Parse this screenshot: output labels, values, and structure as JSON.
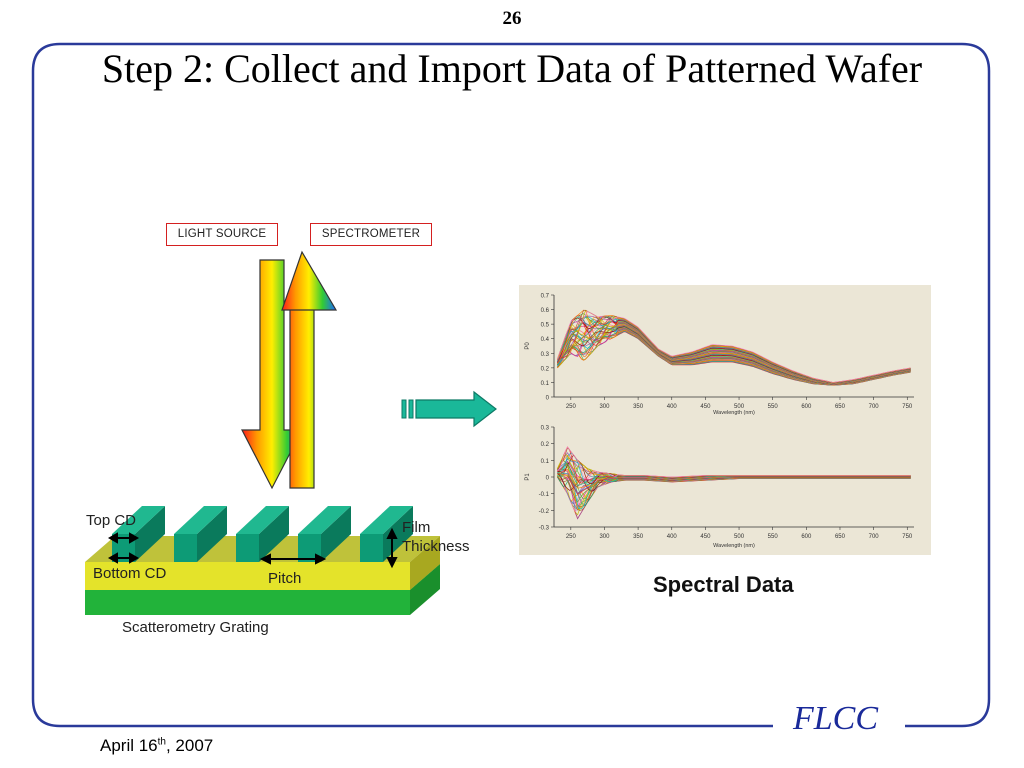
{
  "slide": {
    "number": "26",
    "title": "Step 2: Collect and Import Data of Patterned Wafer",
    "footer_date_month_day": "April 16",
    "footer_date_sup": "th",
    "footer_date_year": ", 2007",
    "logo": "FLCC"
  },
  "diagram": {
    "light_source_label": "LIGHT SOURCE",
    "spectrometer_label": "SPECTROMETER",
    "top_cd_label": "Top CD",
    "bottom_cd_label": "Bottom CD",
    "pitch_label": "Pitch",
    "film_label": "Film",
    "thickness_label": "Thickness",
    "grating_caption": "Scatterometry Grating",
    "spectral_caption": "Spectral Data"
  },
  "colors": {
    "frame": "#2a3a9a",
    "substrate_green": "#22b33a",
    "film_yellow": "#d7d62a",
    "line_teal": "#0e8a6a",
    "label_border": "#d42020",
    "chart_bg": "#ebe6d6"
  },
  "chart_data": [
    {
      "type": "line",
      "xlabel": "Wavelength (nm)",
      "ylabel": "P0",
      "xticks": [
        250,
        300,
        350,
        400,
        450,
        500,
        550,
        600,
        650,
        700,
        750
      ],
      "yticks": [
        "0.7",
        "0.6",
        "0.5",
        "0.4",
        "0.3",
        "0.2",
        "0.1",
        "0"
      ],
      "xlim": [
        225,
        760
      ],
      "ylim": [
        0,
        0.7
      ],
      "grid": false,
      "series_count": 40,
      "envelope": {
        "x": [
          230,
          250,
          270,
          290,
          310,
          330,
          350,
          380,
          400,
          430,
          460,
          490,
          520,
          550,
          580,
          610,
          640,
          670,
          700,
          730,
          755
        ],
        "low": [
          0.2,
          0.3,
          0.25,
          0.35,
          0.4,
          0.45,
          0.4,
          0.28,
          0.22,
          0.22,
          0.24,
          0.24,
          0.21,
          0.16,
          0.12,
          0.09,
          0.08,
          0.09,
          0.12,
          0.15,
          0.17
        ],
        "high": [
          0.26,
          0.52,
          0.6,
          0.55,
          0.56,
          0.54,
          0.48,
          0.33,
          0.28,
          0.31,
          0.36,
          0.35,
          0.31,
          0.24,
          0.18,
          0.13,
          0.1,
          0.12,
          0.15,
          0.18,
          0.2
        ]
      }
    },
    {
      "type": "line",
      "xlabel": "Wavelength (nm)",
      "ylabel": "P1",
      "xticks": [
        250,
        300,
        350,
        400,
        450,
        500,
        550,
        600,
        650,
        700,
        750
      ],
      "yticks": [
        "0.3",
        "0.2",
        "0.1",
        "0",
        "-0.1",
        "-0.2",
        "-0.3"
      ],
      "xlim": [
        225,
        760
      ],
      "ylim": [
        -0.3,
        0.3
      ],
      "grid": false,
      "series_count": 40,
      "envelope": {
        "x": [
          230,
          245,
          260,
          275,
          290,
          310,
          330,
          360,
          400,
          450,
          500,
          550,
          600,
          650,
          700,
          755
        ],
        "low": [
          0.0,
          -0.1,
          -0.25,
          -0.15,
          -0.06,
          -0.03,
          -0.02,
          -0.02,
          -0.03,
          -0.02,
          -0.01,
          -0.01,
          -0.01,
          -0.01,
          -0.01,
          -0.01
        ],
        "high": [
          0.05,
          0.18,
          0.1,
          0.05,
          0.03,
          0.02,
          0.01,
          0.01,
          0.0,
          0.01,
          0.01,
          0.01,
          0.01,
          0.01,
          0.01,
          0.01
        ]
      }
    }
  ]
}
